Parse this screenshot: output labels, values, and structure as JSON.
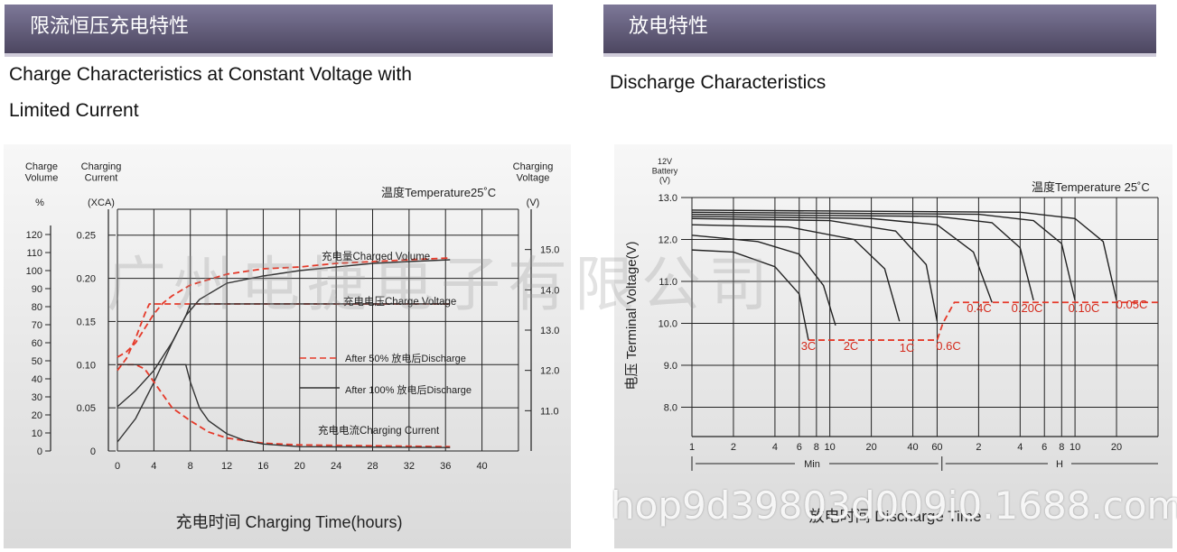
{
  "left": {
    "header": "限流恒压充电特性",
    "subtitle_line1": "Charge Characteristics at Constant Voltage with",
    "subtitle_line2": "Limited Current"
  },
  "right": {
    "header": "放电特性",
    "subtitle": "Discharge Characteristics"
  },
  "watermark_cn": "广州电捷电子有限公司",
  "watermark_url": "hop9d39803d009i0.1688.com",
  "chart_data": [
    {
      "type": "line",
      "title": "温度Temperature25˚C",
      "xlabel": "充电时间 Charging Time(hours)",
      "axis_labels": {
        "volume": "Charge\nVolume",
        "volume_unit": "%",
        "current": "Charging\nCurrent",
        "current_unit": "(XCA)",
        "voltage": "Charging\nVoltage",
        "voltage_unit": "(V)"
      },
      "x_ticks": [
        0,
        4,
        8,
        12,
        16,
        20,
        24,
        28,
        32,
        36,
        40
      ],
      "xlim": [
        0,
        40
      ],
      "y_volume_ticks": [
        0,
        10,
        20,
        30,
        40,
        50,
        60,
        70,
        80,
        90,
        100,
        110,
        120
      ],
      "y_current_ticks": [
        0,
        0.05,
        0.1,
        0.15,
        0.2,
        0.25
      ],
      "y_current_lim": [
        0,
        0.28
      ],
      "y_voltage_ticks": [
        11.0,
        12.0,
        13.0,
        14.0,
        15.0
      ],
      "y_voltage_lim": [
        10.0,
        16.0
      ],
      "annotations": {
        "charged_volume": "充电量Charged Volume",
        "charge_voltage": "充电电压Charge Voltage",
        "charging_current": "充电电流Charging Current",
        "legend_50": "After 50% 放电后Discharge",
        "legend_100": "After 100% 放电后Discharge"
      },
      "legend_placement": "right",
      "series": [
        {
          "name": "After 50% 放电后Discharge",
          "quantity": "volume",
          "style": "dashed-red",
          "x": [
            0,
            1,
            2,
            3,
            4,
            5,
            6,
            8,
            12,
            16,
            20,
            24,
            28,
            32,
            36.5
          ],
          "values": [
            52,
            55,
            60,
            68,
            76,
            82,
            86,
            92,
            98,
            101,
            102,
            104,
            105,
            106,
            107
          ]
        },
        {
          "name": "After 100% 放电后Discharge",
          "quantity": "volume",
          "style": "solid-black",
          "x": [
            0,
            2,
            4,
            6,
            7.5,
            9,
            12,
            16,
            20,
            24,
            28,
            32,
            36.5
          ],
          "values": [
            5,
            18,
            38,
            60,
            75,
            84,
            93,
            97,
            100,
            102,
            104,
            105,
            106
          ]
        },
        {
          "name": "After 50% 放电后Discharge",
          "quantity": "voltage",
          "style": "dashed-red",
          "x": [
            0,
            1,
            2,
            3,
            3.5,
            8,
            36.5
          ],
          "values": [
            12.0,
            12.3,
            12.8,
            13.4,
            13.65,
            13.65,
            13.65
          ]
        },
        {
          "name": "After 100% 放电后Discharge",
          "quantity": "voltage",
          "style": "solid-black",
          "x": [
            0,
            2,
            4,
            6,
            7.5,
            8,
            36.5
          ],
          "values": [
            11.1,
            11.5,
            12.0,
            12.7,
            13.35,
            13.65,
            13.65
          ]
        },
        {
          "name": "After 50% 放电后Discharge",
          "quantity": "current",
          "style": "dashed-red",
          "x": [
            0,
            1,
            2,
            3,
            4,
            6,
            8,
            10,
            12,
            16,
            20,
            36.5
          ],
          "values": [
            0.1,
            0.1,
            0.1,
            0.095,
            0.08,
            0.05,
            0.035,
            0.022,
            0.015,
            0.009,
            0.007,
            0.005
          ]
        },
        {
          "name": "After 100% 放电后Discharge",
          "quantity": "current",
          "style": "solid-black",
          "x": [
            0,
            7.5,
            8,
            9,
            10,
            12,
            14,
            16,
            20,
            36.5
          ],
          "values": [
            0.1,
            0.1,
            0.08,
            0.05,
            0.035,
            0.02,
            0.012,
            0.008,
            0.005,
            0.004
          ]
        }
      ]
    },
    {
      "type": "line",
      "title": "温度Temperature 25˚C",
      "xlabel": "放电时间 Discharge Time",
      "ylabel": "电压 Terminal Voltage(V)",
      "y_unit_label": "12V\nBattery\n(V)",
      "y_ticks": [
        8.0,
        9.0,
        10.0,
        11.0,
        12.0,
        13.0
      ],
      "ylim": [
        7.3,
        13.0
      ],
      "x_ticks": [
        "1",
        "2",
        "4",
        "6",
        "8",
        "10",
        "20",
        "40",
        "60",
        "2",
        "4",
        "6",
        "8",
        "10",
        "20"
      ],
      "x_unit_min": "Min",
      "x_unit_h": "H",
      "x_scale": "log",
      "cutoff_labels": [
        "3C",
        "2C",
        "1C",
        "0.6C",
        "0.4C",
        "0.20C",
        "0.10C",
        "0.05C"
      ],
      "series": [
        {
          "name": "3C",
          "x_min": [
            1,
            2,
            4,
            6,
            7
          ],
          "values": [
            11.75,
            11.7,
            11.35,
            10.7,
            9.6
          ]
        },
        {
          "name": "2C",
          "x_min": [
            1,
            3,
            6,
            9,
            11
          ],
          "values": [
            12.1,
            11.95,
            11.65,
            10.9,
            9.95
          ]
        },
        {
          "name": "1C",
          "x_min": [
            1,
            5,
            15,
            25,
            32
          ],
          "values": [
            12.35,
            12.3,
            12.0,
            11.3,
            10.05
          ]
        },
        {
          "name": "0.6C",
          "x_min": [
            1,
            10,
            30,
            50,
            60
          ],
          "values": [
            12.5,
            12.45,
            12.2,
            11.4,
            10.05
          ]
        },
        {
          "name": "0.4C",
          "x_min": [
            1,
            20,
            60,
            110,
            150
          ],
          "values": [
            12.55,
            12.5,
            12.35,
            11.7,
            10.5
          ]
        },
        {
          "name": "0.20C",
          "x_min": [
            1,
            60,
            150,
            240,
            300
          ],
          "values": [
            12.6,
            12.55,
            12.4,
            11.8,
            10.55
          ]
        },
        {
          "name": "0.10C",
          "x_min": [
            1,
            120,
            300,
            480,
            600
          ],
          "values": [
            12.65,
            12.6,
            12.45,
            11.9,
            10.55
          ]
        },
        {
          "name": "0.05C",
          "x_min": [
            1,
            240,
            600,
            960,
            1200
          ],
          "values": [
            12.7,
            12.65,
            12.5,
            11.95,
            10.55
          ]
        }
      ],
      "cutoff_line": {
        "x_min": [
          7,
          32,
          60,
          66,
          80,
          2400
        ],
        "values": [
          9.6,
          9.6,
          9.6,
          10.0,
          10.5,
          10.5
        ]
      }
    }
  ]
}
